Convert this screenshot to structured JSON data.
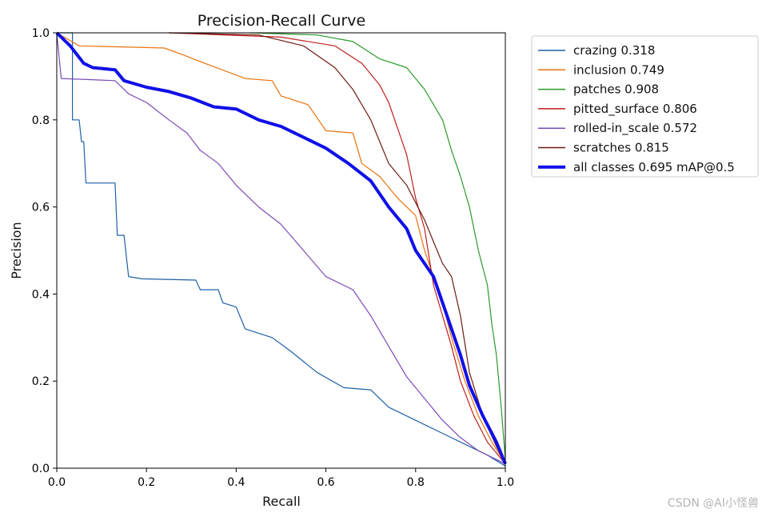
{
  "chart_data": {
    "type": "line",
    "title": "Precision-Recall Curve",
    "xlabel": "Recall",
    "ylabel": "Precision",
    "xlim": [
      0,
      1
    ],
    "ylim": [
      0,
      1
    ],
    "xticks": [
      "0.0",
      "0.2",
      "0.4",
      "0.6",
      "0.8",
      "1.0"
    ],
    "yticks": [
      "0.0",
      "0.2",
      "0.4",
      "0.6",
      "0.8",
      "1.0"
    ],
    "grid": false,
    "legend_position": "outside-top-right",
    "series": [
      {
        "name": "crazing 0.318",
        "color": "#1f5fa6",
        "points": [
          [
            0,
            1.0
          ],
          [
            0.035,
            1.0
          ],
          [
            0.035,
            0.8
          ],
          [
            0.05,
            0.8
          ],
          [
            0.055,
            0.75
          ],
          [
            0.06,
            0.75
          ],
          [
            0.065,
            0.655
          ],
          [
            0.13,
            0.655
          ],
          [
            0.135,
            0.535
          ],
          [
            0.15,
            0.535
          ],
          [
            0.16,
            0.44
          ],
          [
            0.19,
            0.435
          ],
          [
            0.31,
            0.432
          ],
          [
            0.32,
            0.41
          ],
          [
            0.36,
            0.41
          ],
          [
            0.37,
            0.38
          ],
          [
            0.4,
            0.37
          ],
          [
            0.42,
            0.32
          ],
          [
            0.48,
            0.3
          ],
          [
            0.52,
            0.27
          ],
          [
            0.58,
            0.22
          ],
          [
            0.64,
            0.185
          ],
          [
            0.7,
            0.18
          ],
          [
            0.74,
            0.14
          ],
          [
            0.8,
            0.11
          ],
          [
            0.86,
            0.08
          ],
          [
            0.92,
            0.05
          ],
          [
            0.96,
            0.03
          ],
          [
            1.0,
            0.005
          ]
        ]
      },
      {
        "name": "inclusion 0.749",
        "color": "#e8730c",
        "points": [
          [
            0,
            1.0
          ],
          [
            0.05,
            0.97
          ],
          [
            0.24,
            0.965
          ],
          [
            0.28,
            0.95
          ],
          [
            0.33,
            0.93
          ],
          [
            0.42,
            0.895
          ],
          [
            0.48,
            0.89
          ],
          [
            0.5,
            0.855
          ],
          [
            0.56,
            0.835
          ],
          [
            0.6,
            0.775
          ],
          [
            0.66,
            0.77
          ],
          [
            0.68,
            0.7
          ],
          [
            0.72,
            0.67
          ],
          [
            0.76,
            0.62
          ],
          [
            0.8,
            0.58
          ],
          [
            0.82,
            0.5
          ],
          [
            0.84,
            0.44
          ],
          [
            0.86,
            0.38
          ],
          [
            0.88,
            0.3
          ],
          [
            0.91,
            0.2
          ],
          [
            0.94,
            0.12
          ],
          [
            0.97,
            0.06
          ],
          [
            1.0,
            0.01
          ]
        ]
      },
      {
        "name": "patches 0.908",
        "color": "#2a9a2a",
        "points": [
          [
            0.43,
            1.0
          ],
          [
            0.58,
            0.995
          ],
          [
            0.66,
            0.98
          ],
          [
            0.72,
            0.94
          ],
          [
            0.78,
            0.92
          ],
          [
            0.82,
            0.87
          ],
          [
            0.86,
            0.8
          ],
          [
            0.88,
            0.73
          ],
          [
            0.9,
            0.67
          ],
          [
            0.92,
            0.6
          ],
          [
            0.94,
            0.5
          ],
          [
            0.96,
            0.42
          ],
          [
            0.97,
            0.33
          ],
          [
            0.98,
            0.26
          ],
          [
            0.99,
            0.15
          ],
          [
            1.0,
            0.02
          ]
        ]
      },
      {
        "name": "pitted_surface 0.806",
        "color": "#c0201f",
        "points": [
          [
            0.25,
            1.0
          ],
          [
            0.5,
            0.99
          ],
          [
            0.62,
            0.97
          ],
          [
            0.68,
            0.93
          ],
          [
            0.72,
            0.88
          ],
          [
            0.74,
            0.84
          ],
          [
            0.76,
            0.78
          ],
          [
            0.78,
            0.72
          ],
          [
            0.8,
            0.62
          ],
          [
            0.82,
            0.55
          ],
          [
            0.84,
            0.42
          ],
          [
            0.86,
            0.35
          ],
          [
            0.88,
            0.28
          ],
          [
            0.9,
            0.2
          ],
          [
            0.93,
            0.12
          ],
          [
            0.96,
            0.06
          ],
          [
            1.0,
            0.01
          ]
        ]
      },
      {
        "name": "rolled-in_scale 0.572",
        "color": "#7a4cb8",
        "points": [
          [
            0,
            1.0
          ],
          [
            0.01,
            0.895
          ],
          [
            0.13,
            0.89
          ],
          [
            0.16,
            0.86
          ],
          [
            0.2,
            0.84
          ],
          [
            0.25,
            0.8
          ],
          [
            0.29,
            0.77
          ],
          [
            0.32,
            0.73
          ],
          [
            0.36,
            0.7
          ],
          [
            0.4,
            0.65
          ],
          [
            0.45,
            0.6
          ],
          [
            0.5,
            0.56
          ],
          [
            0.55,
            0.5
          ],
          [
            0.6,
            0.44
          ],
          [
            0.66,
            0.41
          ],
          [
            0.7,
            0.35
          ],
          [
            0.74,
            0.28
          ],
          [
            0.78,
            0.21
          ],
          [
            0.82,
            0.16
          ],
          [
            0.86,
            0.11
          ],
          [
            0.9,
            0.07
          ],
          [
            0.94,
            0.04
          ],
          [
            1.0,
            0.01
          ]
        ]
      },
      {
        "name": "scratches 0.815",
        "color": "#6e1a12",
        "points": [
          [
            0.25,
            1.0
          ],
          [
            0.45,
            0.995
          ],
          [
            0.55,
            0.97
          ],
          [
            0.62,
            0.92
          ],
          [
            0.66,
            0.87
          ],
          [
            0.7,
            0.8
          ],
          [
            0.72,
            0.75
          ],
          [
            0.74,
            0.7
          ],
          [
            0.78,
            0.65
          ],
          [
            0.82,
            0.57
          ],
          [
            0.84,
            0.52
          ],
          [
            0.86,
            0.47
          ],
          [
            0.88,
            0.44
          ],
          [
            0.9,
            0.35
          ],
          [
            0.92,
            0.22
          ],
          [
            0.95,
            0.12
          ],
          [
            0.98,
            0.05
          ],
          [
            1.0,
            0.01
          ]
        ]
      },
      {
        "name": "all classes 0.695 mAP@0.5",
        "color": "#1010e8",
        "bold": true,
        "points": [
          [
            0,
            1.0
          ],
          [
            0.01,
            0.99
          ],
          [
            0.03,
            0.97
          ],
          [
            0.06,
            0.93
          ],
          [
            0.08,
            0.92
          ],
          [
            0.13,
            0.915
          ],
          [
            0.15,
            0.89
          ],
          [
            0.2,
            0.875
          ],
          [
            0.25,
            0.865
          ],
          [
            0.3,
            0.85
          ],
          [
            0.35,
            0.83
          ],
          [
            0.4,
            0.825
          ],
          [
            0.45,
            0.8
          ],
          [
            0.5,
            0.785
          ],
          [
            0.55,
            0.76
          ],
          [
            0.6,
            0.735
          ],
          [
            0.65,
            0.7
          ],
          [
            0.7,
            0.66
          ],
          [
            0.74,
            0.6
          ],
          [
            0.78,
            0.55
          ],
          [
            0.8,
            0.5
          ],
          [
            0.84,
            0.44
          ],
          [
            0.86,
            0.38
          ],
          [
            0.88,
            0.32
          ],
          [
            0.9,
            0.26
          ],
          [
            0.92,
            0.19
          ],
          [
            0.95,
            0.12
          ],
          [
            0.98,
            0.06
          ],
          [
            1.0,
            0.01
          ]
        ]
      }
    ]
  },
  "watermark": "CSDN @AI小怪兽"
}
